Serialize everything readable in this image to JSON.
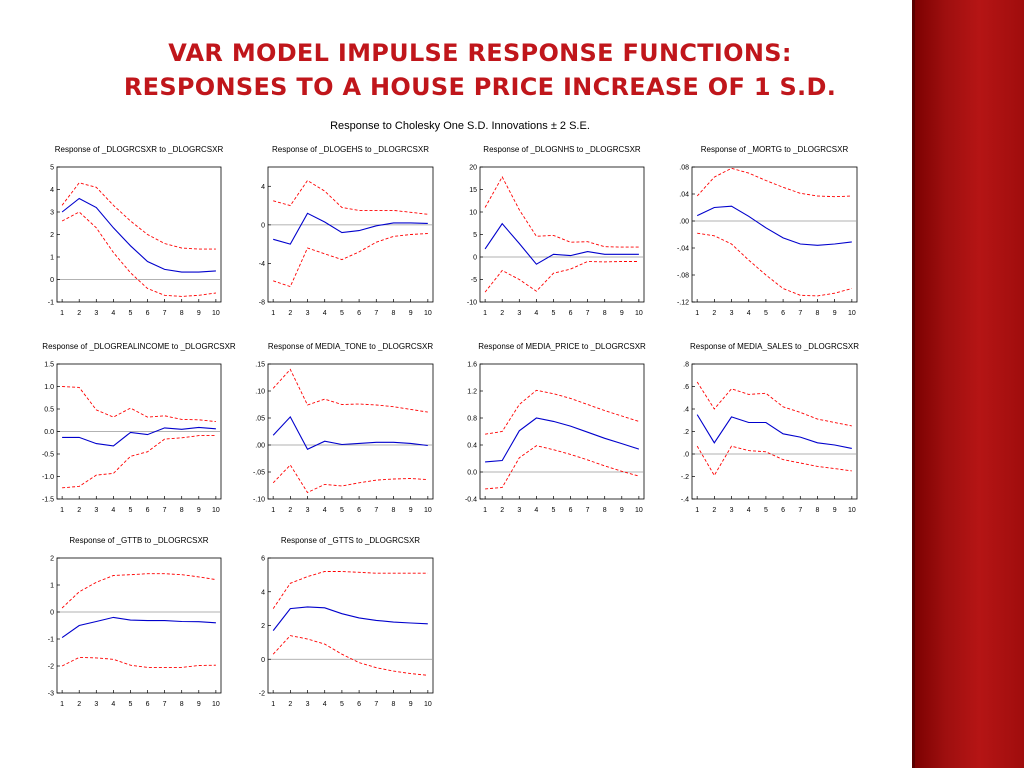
{
  "slide": {
    "title_line1": "VAR MODEL IMPULSE RESPONSE FUNCTIONS:",
    "title_line2": "RESPONSES TO A HOUSE PRICE INCREASE OF 1 S.D.",
    "subtitle": "Response to Cholesky One S.D. Innovations ± 2 S.E."
  },
  "colors": {
    "response": "#0000cc",
    "band": "#ff0000",
    "zero": "#999999",
    "accent": "#c0161b"
  },
  "chart_data": [
    {
      "type": "line",
      "title": "Response of _DLOGRCSXR to _DLOGRCSXR",
      "x": [
        1,
        2,
        3,
        4,
        5,
        6,
        7,
        8,
        9,
        10
      ],
      "ylim": [
        -1,
        5
      ],
      "yticks": [
        "-1",
        "0",
        "1",
        "2",
        "3",
        "4",
        "5"
      ],
      "ytick_values": [
        -1,
        0,
        1,
        2,
        3,
        4,
        5
      ],
      "series": [
        {
          "role": "upper",
          "values": [
            3.3,
            4.3,
            4.1,
            3.3,
            2.6,
            2.0,
            1.6,
            1.4,
            1.35,
            1.35
          ]
        },
        {
          "role": "response",
          "values": [
            3.0,
            3.6,
            3.2,
            2.3,
            1.5,
            0.8,
            0.45,
            0.33,
            0.33,
            0.38
          ]
        },
        {
          "role": "lower",
          "values": [
            2.6,
            3.0,
            2.3,
            1.2,
            0.3,
            -0.4,
            -0.7,
            -0.75,
            -0.7,
            -0.6
          ]
        }
      ]
    },
    {
      "type": "line",
      "title": "Response of _DLOGEHS to _DLOGRCSXR",
      "x": [
        1,
        2,
        3,
        4,
        5,
        6,
        7,
        8,
        9,
        10
      ],
      "ylim": [
        -8,
        6
      ],
      "yticks": [
        "-8",
        "-4",
        "0",
        "4"
      ],
      "ytick_values": [
        -8,
        -4,
        0,
        4
      ],
      "series": [
        {
          "role": "upper",
          "values": [
            2.5,
            2.0,
            4.6,
            3.5,
            1.8,
            1.5,
            1.5,
            1.5,
            1.3,
            1.1
          ]
        },
        {
          "role": "response",
          "values": [
            -1.5,
            -2.0,
            1.2,
            0.3,
            -0.8,
            -0.6,
            -0.1,
            0.2,
            0.2,
            0.15
          ]
        },
        {
          "role": "lower",
          "values": [
            -5.8,
            -6.4,
            -2.4,
            -3.0,
            -3.6,
            -2.8,
            -1.8,
            -1.2,
            -1.0,
            -0.9
          ]
        }
      ]
    },
    {
      "type": "line",
      "title": "Response of _DLOGNHS to _DLOGRCSXR",
      "x": [
        1,
        2,
        3,
        4,
        5,
        6,
        7,
        8,
        9,
        10
      ],
      "ylim": [
        -10,
        20
      ],
      "yticks": [
        "-10",
        "-5",
        "0",
        "5",
        "10",
        "15",
        "20"
      ],
      "ytick_values": [
        -10,
        -5,
        0,
        5,
        10,
        15,
        20
      ],
      "series": [
        {
          "role": "upper",
          "values": [
            11,
            17.8,
            10.5,
            4.6,
            4.8,
            3.3,
            3.4,
            2.3,
            2.2,
            2.2
          ]
        },
        {
          "role": "response",
          "values": [
            1.8,
            7.4,
            3.0,
            -1.6,
            0.6,
            0.3,
            1.2,
            0.6,
            0.6,
            0.6
          ]
        },
        {
          "role": "lower",
          "values": [
            -7.8,
            -3.0,
            -5.0,
            -7.6,
            -3.6,
            -2.7,
            -1.0,
            -1.1,
            -1.0,
            -1.0
          ]
        }
      ]
    },
    {
      "type": "line",
      "title": "Response of _MORTG to _DLOGRCSXR",
      "x": [
        1,
        2,
        3,
        4,
        5,
        6,
        7,
        8,
        9,
        10
      ],
      "ylim": [
        -0.12,
        0.08
      ],
      "yticks": [
        ".08",
        ".04",
        ".00",
        "-.04",
        "-.08",
        "-.12"
      ],
      "ytick_values": [
        0.08,
        0.04,
        0.0,
        -0.04,
        -0.08,
        -0.12
      ],
      "series": [
        {
          "role": "upper",
          "values": [
            0.037,
            0.065,
            0.078,
            0.071,
            0.06,
            0.05,
            0.041,
            0.037,
            0.036,
            0.037
          ]
        },
        {
          "role": "response",
          "values": [
            0.008,
            0.02,
            0.022,
            0.007,
            -0.01,
            -0.025,
            -0.034,
            -0.036,
            -0.034,
            -0.031
          ]
        },
        {
          "role": "lower",
          "values": [
            -0.018,
            -0.022,
            -0.034,
            -0.058,
            -0.08,
            -0.1,
            -0.11,
            -0.111,
            -0.107,
            -0.1
          ]
        }
      ]
    },
    {
      "type": "line",
      "title": "Response of _DLOGREALINCOME to _DLOGRCSXR",
      "x": [
        1,
        2,
        3,
        4,
        5,
        6,
        7,
        8,
        9,
        10
      ],
      "ylim": [
        -1.5,
        1.5
      ],
      "yticks": [
        "1.5",
        "1.0",
        "0.5",
        "0.0",
        "-0.5",
        "-1.0",
        "-1.5"
      ],
      "ytick_values": [
        1.5,
        1.0,
        0.5,
        0.0,
        -0.5,
        -1.0,
        -1.5
      ],
      "series": [
        {
          "role": "upper",
          "values": [
            1.0,
            0.98,
            0.48,
            0.32,
            0.52,
            0.32,
            0.35,
            0.27,
            0.26,
            0.22
          ]
        },
        {
          "role": "response",
          "values": [
            -0.13,
            -0.13,
            -0.27,
            -0.32,
            -0.02,
            -0.07,
            0.08,
            0.05,
            0.09,
            0.06
          ]
        },
        {
          "role": "lower",
          "values": [
            -1.25,
            -1.22,
            -0.97,
            -0.93,
            -0.55,
            -0.45,
            -0.17,
            -0.14,
            -0.09,
            -0.09
          ]
        }
      ]
    },
    {
      "type": "line",
      "title": "Response of MEDIA_TONE to _DLOGRCSXR",
      "x": [
        1,
        2,
        3,
        4,
        5,
        6,
        7,
        8,
        9,
        10
      ],
      "ylim": [
        -0.1,
        0.15
      ],
      "yticks": [
        ".15",
        ".10",
        ".05",
        ".00",
        "-.05",
        "-.10"
      ],
      "ytick_values": [
        0.15,
        0.1,
        0.05,
        0.0,
        -0.05,
        -0.1
      ],
      "series": [
        {
          "role": "upper",
          "values": [
            0.105,
            0.14,
            0.074,
            0.085,
            0.075,
            0.076,
            0.074,
            0.071,
            0.066,
            0.061
          ]
        },
        {
          "role": "response",
          "values": [
            0.018,
            0.052,
            -0.008,
            0.007,
            0.001,
            0.003,
            0.005,
            0.005,
            0.003,
            -0.001
          ]
        },
        {
          "role": "lower",
          "values": [
            -0.07,
            -0.037,
            -0.088,
            -0.073,
            -0.076,
            -0.07,
            -0.065,
            -0.063,
            -0.062,
            -0.064
          ]
        }
      ]
    },
    {
      "type": "line",
      "title": "Response of MEDIA_PRICE to _DLOGRCSXR",
      "x": [
        1,
        2,
        3,
        4,
        5,
        6,
        7,
        8,
        9,
        10
      ],
      "ylim": [
        -0.4,
        1.6
      ],
      "yticks": [
        "1.6",
        "1.2",
        "0.8",
        "0.4",
        "0.0",
        "-0.4"
      ],
      "ytick_values": [
        1.6,
        1.2,
        0.8,
        0.4,
        0.0,
        -0.4
      ],
      "series": [
        {
          "role": "upper",
          "values": [
            0.56,
            0.6,
            1.0,
            1.21,
            1.16,
            1.09,
            1.0,
            0.91,
            0.83,
            0.75
          ]
        },
        {
          "role": "response",
          "values": [
            0.15,
            0.17,
            0.61,
            0.8,
            0.75,
            0.68,
            0.59,
            0.5,
            0.42,
            0.34
          ]
        },
        {
          "role": "lower",
          "values": [
            -0.25,
            -0.23,
            0.21,
            0.39,
            0.33,
            0.26,
            0.18,
            0.09,
            0.01,
            -0.06
          ]
        }
      ]
    },
    {
      "type": "line",
      "title": "Response of MEDIA_SALES to _DLOGRCSXR",
      "x": [
        1,
        2,
        3,
        4,
        5,
        6,
        7,
        8,
        9,
        10
      ],
      "ylim": [
        -0.4,
        0.8
      ],
      "yticks": [
        ".8",
        ".6",
        ".4",
        ".2",
        ".0",
        "-.2",
        "-.4"
      ],
      "ytick_values": [
        0.8,
        0.6,
        0.4,
        0.2,
        0.0,
        -0.2,
        -0.4
      ],
      "series": [
        {
          "role": "upper",
          "values": [
            0.64,
            0.4,
            0.58,
            0.53,
            0.54,
            0.42,
            0.37,
            0.31,
            0.28,
            0.25
          ]
        },
        {
          "role": "response",
          "values": [
            0.35,
            0.1,
            0.33,
            0.28,
            0.28,
            0.18,
            0.15,
            0.1,
            0.08,
            0.05
          ]
        },
        {
          "role": "lower",
          "values": [
            0.07,
            -0.19,
            0.07,
            0.03,
            0.02,
            -0.05,
            -0.08,
            -0.11,
            -0.13,
            -0.15
          ]
        }
      ]
    },
    {
      "type": "line",
      "title": "Response of _GTTB to _DLOGRCSXR",
      "x": [
        1,
        2,
        3,
        4,
        5,
        6,
        7,
        8,
        9,
        10
      ],
      "ylim": [
        -3,
        2
      ],
      "yticks": [
        "2",
        "1",
        "0",
        "-1",
        "-2",
        "-3"
      ],
      "ytick_values": [
        2,
        1,
        0,
        -1,
        -2,
        -3
      ],
      "series": [
        {
          "role": "upper",
          "values": [
            0.15,
            0.75,
            1.1,
            1.35,
            1.38,
            1.42,
            1.42,
            1.38,
            1.3,
            1.2
          ]
        },
        {
          "role": "response",
          "values": [
            -0.95,
            -0.5,
            -0.35,
            -0.2,
            -0.3,
            -0.32,
            -0.32,
            -0.35,
            -0.36,
            -0.4
          ]
        },
        {
          "role": "lower",
          "values": [
            -2.0,
            -1.68,
            -1.7,
            -1.75,
            -1.97,
            -2.05,
            -2.05,
            -2.05,
            -1.98,
            -1.97
          ]
        }
      ]
    },
    {
      "type": "line",
      "title": "Response of _GTTS to _DLOGRCSXR",
      "x": [
        1,
        2,
        3,
        4,
        5,
        6,
        7,
        8,
        9,
        10
      ],
      "ylim": [
        -2,
        6
      ],
      "yticks": [
        "6",
        "4",
        "2",
        "0",
        "-2"
      ],
      "ytick_values": [
        6,
        4,
        2,
        0,
        -2
      ],
      "series": [
        {
          "role": "upper",
          "values": [
            3.0,
            4.5,
            4.9,
            5.2,
            5.2,
            5.15,
            5.1,
            5.1,
            5.1,
            5.1
          ]
        },
        {
          "role": "response",
          "values": [
            1.7,
            3.0,
            3.1,
            3.05,
            2.7,
            2.45,
            2.3,
            2.2,
            2.15,
            2.1
          ]
        },
        {
          "role": "lower",
          "values": [
            0.3,
            1.4,
            1.2,
            0.9,
            0.3,
            -0.2,
            -0.5,
            -0.7,
            -0.85,
            -0.95
          ]
        }
      ]
    }
  ]
}
